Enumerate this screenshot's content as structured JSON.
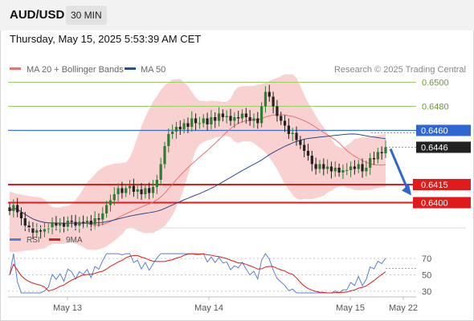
{
  "header": {
    "symbol": "AUD/USD",
    "timeframe": "30 MIN",
    "datetime": "Thursday, May 15, 2025 5:53:39 AM CET"
  },
  "legend": {
    "ma20_bb": "MA 20 + Bollinger Bands",
    "ma50": "MA 50",
    "copyright": "Research © 2025 Trading Central",
    "rsi": "RSI",
    "rsi_ma": "9MA"
  },
  "colors": {
    "bollinger_fill": "#f8c9c9",
    "ma20": "#e57373",
    "ma50": "#2d4b8e",
    "bullish": "#2e7d32",
    "bearish": "#222222",
    "resistance_line": "#9ccc65",
    "resistance_label": "#6a9e2a",
    "pivot_line": "#3f6fc8",
    "pivot_badge": "#2f66d0",
    "support_line": "#e01b1b",
    "support_badge": "#e01b1b",
    "last_price_badge": "#222222",
    "arrow": "#2f66d0",
    "rsi_line": "#5b7fd6",
    "rsi_ma_line": "#e01b1b"
  },
  "chart_data": {
    "type": "candlestick",
    "price_range": [
      0.6385,
      0.6505
    ],
    "x_labels": [
      "May 13",
      "May 14",
      "May 15",
      "May 22"
    ],
    "levels": [
      {
        "value": 0.65,
        "label": "0.6500",
        "kind": "resistance"
      },
      {
        "value": 0.648,
        "label": "0.6480",
        "kind": "resistance"
      },
      {
        "value": 0.646,
        "label": "0.6460",
        "kind": "pivot"
      },
      {
        "value": 0.6446,
        "label": "0.6446",
        "kind": "last"
      },
      {
        "value": 0.6415,
        "label": "0.6415",
        "kind": "support"
      },
      {
        "value": 0.64,
        "label": "0.6400",
        "kind": "support"
      }
    ],
    "closes": [
      0.6393,
      0.6398,
      0.6392,
      0.6387,
      0.6381,
      0.6379,
      0.6375,
      0.6377,
      0.6376,
      0.6378,
      0.6379,
      0.6383,
      0.6381,
      0.6383,
      0.638,
      0.6385,
      0.6384,
      0.6381,
      0.6384,
      0.6383,
      0.6385,
      0.6382,
      0.6387,
      0.6386,
      0.6391,
      0.6398,
      0.6402,
      0.6407,
      0.6412,
      0.6408,
      0.6412,
      0.6414,
      0.6409,
      0.6411,
      0.6407,
      0.6412,
      0.6408,
      0.6413,
      0.6419,
      0.6432,
      0.6447,
      0.6457,
      0.6459,
      0.6463,
      0.6461,
      0.6466,
      0.6463,
      0.647,
      0.6466,
      0.6466,
      0.647,
      0.6465,
      0.6471,
      0.6468,
      0.6474,
      0.6471,
      0.6472,
      0.6468,
      0.6471,
      0.647,
      0.6474,
      0.6471,
      0.6468,
      0.647,
      0.6466,
      0.648,
      0.6492,
      0.6488,
      0.648,
      0.6472,
      0.6468,
      0.6464,
      0.6457,
      0.6458,
      0.6452,
      0.6448,
      0.6443,
      0.6439,
      0.6432,
      0.6428,
      0.6432,
      0.6428,
      0.643,
      0.6426,
      0.6429,
      0.6425,
      0.6427,
      0.6427,
      0.643,
      0.6428,
      0.6432,
      0.6426,
      0.6429,
      0.6437,
      0.6436,
      0.6442,
      0.6441,
      0.6446
    ],
    "ma20_range": [
      0.6382,
      0.6465
    ],
    "ma50_range": [
      0.6395,
      0.6462
    ],
    "rsi_ticks": [
      70,
      50,
      30
    ],
    "rsi_range": [
      25,
      80
    ],
    "rsi_last": 58
  }
}
